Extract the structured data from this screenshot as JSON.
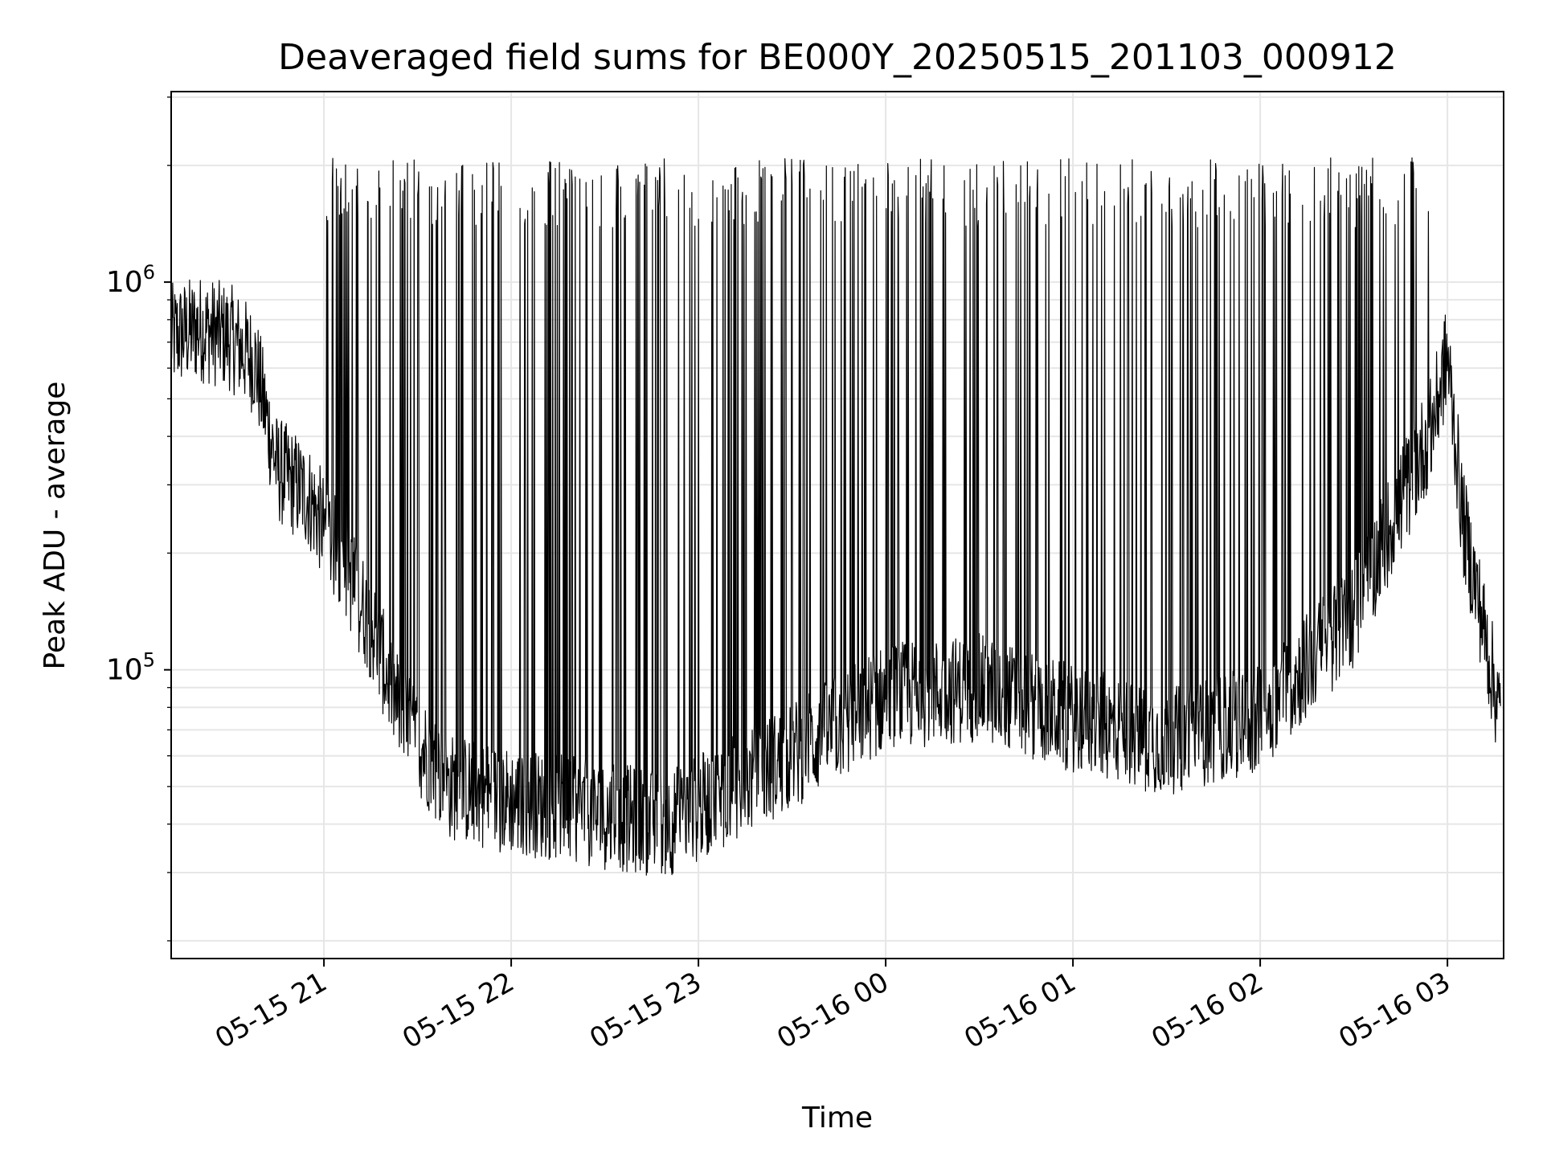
{
  "chart_data": {
    "type": "line",
    "title": "Deaveraged field sums for BE000Y_20250515_201103_000912",
    "xlabel": "Time",
    "ylabel": "Peak ADU - average",
    "x_type": "time",
    "y_scale": "log",
    "xlim": [
      "2025-05-15 20:11:03",
      "2025-05-16 03:18:00"
    ],
    "ylim": [
      18000,
      3100000
    ],
    "grid": true,
    "line_color": "#000000",
    "x_ticks": [
      {
        "value": "2025-05-15 21:00",
        "label": "05-15 21"
      },
      {
        "value": "2025-05-15 22:00",
        "label": "05-15 22"
      },
      {
        "value": "2025-05-15 23:00",
        "label": "05-15 23"
      },
      {
        "value": "2025-05-16 00:00",
        "label": "05-16 00"
      },
      {
        "value": "2025-05-16 01:00",
        "label": "05-16 01"
      },
      {
        "value": "2025-05-16 02:00",
        "label": "05-16 02"
      },
      {
        "value": "2025-05-16 03:00",
        "label": "05-16 03"
      }
    ],
    "y_ticks": [
      {
        "value": 100000,
        "base": "10",
        "exp": "5"
      },
      {
        "value": 1000000,
        "base": "10",
        "exp": "6"
      }
    ],
    "series": [
      {
        "x": [
          "2025-05-15 20:11",
          "2025-05-15 20:20",
          "2025-05-15 20:30",
          "2025-05-15 20:38",
          "2025-05-15 20:45",
          "2025-05-15 20:55",
          "2025-05-15 21:03",
          "2025-05-15 21:08",
          "2025-05-15 21:15",
          "2025-05-15 21:25",
          "2025-05-15 21:40",
          "2025-05-15 22:00",
          "2025-05-15 22:30",
          "2025-05-15 22:50",
          "2025-05-15 23:00",
          "2025-05-15 23:30",
          "2025-05-16 00:00",
          "2025-05-16 00:30",
          "2025-05-16 01:00",
          "2025-05-16 01:30",
          "2025-05-16 02:00",
          "2025-05-16 02:30",
          "2025-05-16 02:55",
          "2025-05-16 03:00",
          "2025-05-16 03:05",
          "2025-05-16 03:10",
          "2025-05-16 03:17"
        ],
        "y": [
          720000,
          760000,
          720000,
          620000,
          330000,
          280000,
          210000,
          175000,
          130000,
          75000,
          50000,
          46000,
          42000,
          40000,
          44000,
          60000,
          85000,
          90000,
          75000,
          65000,
          75000,
          140000,
          420000,
          650000,
          240000,
          150000,
          75000
        ],
        "spikes_to": 1700000
      }
    ]
  }
}
